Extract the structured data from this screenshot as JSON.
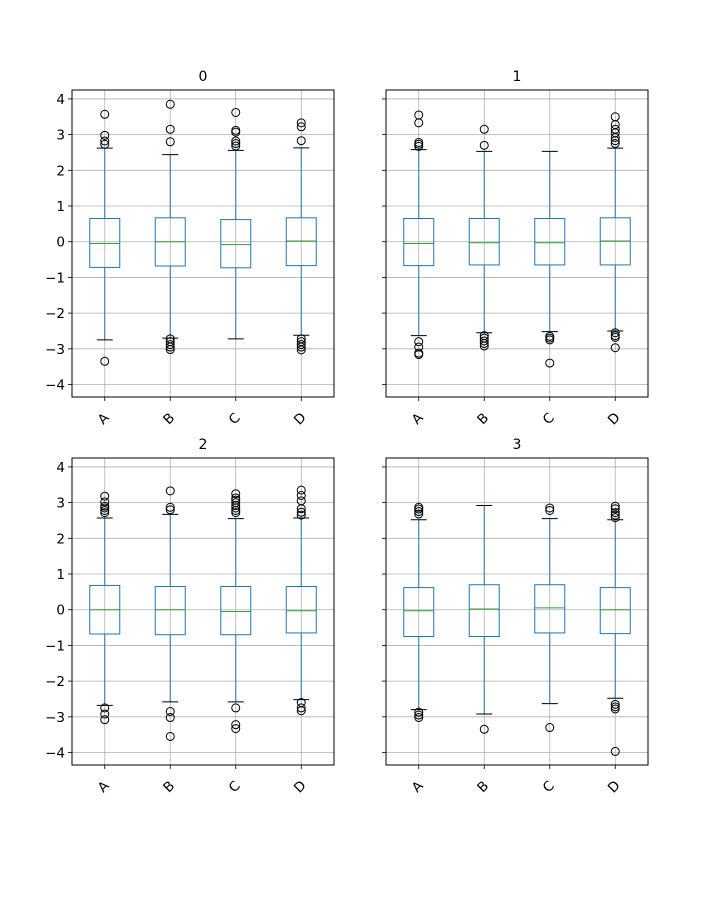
{
  "chart_data": [
    {
      "type": "box",
      "title": "0",
      "categories": [
        "A",
        "B",
        "C",
        "D"
      ],
      "ylim": [
        -4.35,
        4.25
      ],
      "yticks": [
        -4,
        -3,
        -2,
        -1,
        0,
        1,
        2,
        3,
        4
      ],
      "grid": true,
      "boxes": [
        {
          "label": "A",
          "whislo": -2.75,
          "q1": -0.72,
          "med": -0.05,
          "q3": 0.65,
          "whishi": 2.62,
          "fliers": [
            2.73,
            2.82,
            2.98,
            3.57,
            -3.35
          ]
        },
        {
          "label": "B",
          "whislo": -2.7,
          "q1": -0.68,
          "med": 0.0,
          "q3": 0.67,
          "whishi": 2.44,
          "fliers": [
            2.8,
            3.15,
            3.85,
            -2.72,
            -2.8,
            -2.88,
            -2.95,
            -3.02
          ]
        },
        {
          "label": "C",
          "whislo": -2.72,
          "q1": -0.73,
          "med": -0.08,
          "q3": 0.62,
          "whishi": 2.56,
          "fliers": [
            2.68,
            2.75,
            2.82,
            3.07,
            3.12,
            3.62
          ]
        },
        {
          "label": "D",
          "whislo": -2.62,
          "q1": -0.67,
          "med": 0.02,
          "q3": 0.67,
          "whishi": 2.63,
          "fliers": [
            2.83,
            3.22,
            3.33,
            -2.72,
            -2.8,
            -2.88,
            -2.95,
            -3.03
          ]
        }
      ]
    },
    {
      "type": "box",
      "title": "1",
      "categories": [
        "A",
        "B",
        "C",
        "D"
      ],
      "ylim": [
        -4.35,
        4.25
      ],
      "yticks": [
        -4,
        -3,
        -2,
        -1,
        0,
        1,
        2,
        3,
        4
      ],
      "grid": true,
      "boxes": [
        {
          "label": "A",
          "whislo": -2.63,
          "q1": -0.67,
          "med": -0.05,
          "q3": 0.65,
          "whishi": 2.58,
          "fliers": [
            2.67,
            2.73,
            2.78,
            3.33,
            3.55,
            -2.8,
            -2.95,
            -3.12,
            -3.16
          ]
        },
        {
          "label": "B",
          "whislo": -2.55,
          "q1": -0.65,
          "med": -0.03,
          "q3": 0.65,
          "whishi": 2.53,
          "fliers": [
            2.7,
            3.15,
            -2.63,
            -2.7,
            -2.78,
            -2.85,
            -2.92
          ]
        },
        {
          "label": "C",
          "whislo": -2.52,
          "q1": -0.65,
          "med": -0.03,
          "q3": 0.65,
          "whishi": 2.53,
          "fliers": [
            -2.65,
            -2.7,
            -2.75,
            -3.4
          ]
        },
        {
          "label": "D",
          "whislo": -2.5,
          "q1": -0.65,
          "med": 0.02,
          "q3": 0.67,
          "whishi": 2.62,
          "fliers": [
            2.75,
            2.83,
            2.92,
            3.05,
            3.15,
            3.28,
            3.5,
            -2.55,
            -2.63,
            -2.68,
            -2.97
          ]
        }
      ]
    },
    {
      "type": "box",
      "title": "2",
      "categories": [
        "A",
        "B",
        "C",
        "D"
      ],
      "ylim": [
        -4.35,
        4.25
      ],
      "yticks": [
        -4,
        -3,
        -2,
        -1,
        0,
        1,
        2,
        3,
        4
      ],
      "grid": true,
      "boxes": [
        {
          "label": "A",
          "whislo": -2.68,
          "q1": -0.68,
          "med": 0.0,
          "q3": 0.68,
          "whishi": 2.57,
          "fliers": [
            2.72,
            2.78,
            2.85,
            2.9,
            3.02,
            3.18,
            -2.75,
            -2.92,
            -3.08
          ]
        },
        {
          "label": "B",
          "whislo": -2.58,
          "q1": -0.7,
          "med": 0.0,
          "q3": 0.65,
          "whishi": 2.67,
          "fliers": [
            2.8,
            2.87,
            3.33,
            -2.85,
            -3.02,
            -3.55
          ]
        },
        {
          "label": "C",
          "whislo": -2.58,
          "q1": -0.7,
          "med": -0.05,
          "q3": 0.65,
          "whishi": 2.55,
          "fliers": [
            2.72,
            2.78,
            2.85,
            2.92,
            3.0,
            3.07,
            3.13,
            3.25,
            -2.75,
            -3.22,
            -3.33
          ]
        },
        {
          "label": "D",
          "whislo": -2.52,
          "q1": -0.65,
          "med": -0.03,
          "q3": 0.65,
          "whishi": 2.57,
          "fliers": [
            2.65,
            2.73,
            2.83,
            3.05,
            3.2,
            3.35,
            -2.6,
            -2.75,
            -2.83
          ]
        }
      ]
    },
    {
      "type": "box",
      "title": "3",
      "categories": [
        "A",
        "B",
        "C",
        "D"
      ],
      "ylim": [
        -4.35,
        4.25
      ],
      "yticks": [
        -4,
        -3,
        -2,
        -1,
        0,
        1,
        2,
        3,
        4
      ],
      "grid": true,
      "boxes": [
        {
          "label": "A",
          "whislo": -2.8,
          "q1": -0.75,
          "med": -0.03,
          "q3": 0.62,
          "whishi": 2.52,
          "fliers": [
            2.68,
            2.75,
            2.82,
            2.87,
            -2.87,
            -2.95,
            -3.02
          ]
        },
        {
          "label": "B",
          "whislo": -2.92,
          "q1": -0.75,
          "med": 0.02,
          "q3": 0.7,
          "whishi": 2.92,
          "fliers": [
            -3.35
          ]
        },
        {
          "label": "C",
          "whislo": -2.63,
          "q1": -0.65,
          "med": 0.05,
          "q3": 0.7,
          "whishi": 2.55,
          "fliers": [
            2.78,
            2.85,
            -3.3
          ]
        },
        {
          "label": "D",
          "whislo": -2.48,
          "q1": -0.67,
          "med": 0.0,
          "q3": 0.62,
          "whishi": 2.52,
          "fliers": [
            2.58,
            2.65,
            2.72,
            2.83,
            2.9,
            -2.65,
            -2.72,
            -2.78,
            -3.97
          ]
        }
      ]
    }
  ],
  "colors": {
    "box": "#1f77b4",
    "median": "#2ca02c",
    "cap": "#000000",
    "flier": "#000000",
    "grid": "#b0b0b0"
  }
}
